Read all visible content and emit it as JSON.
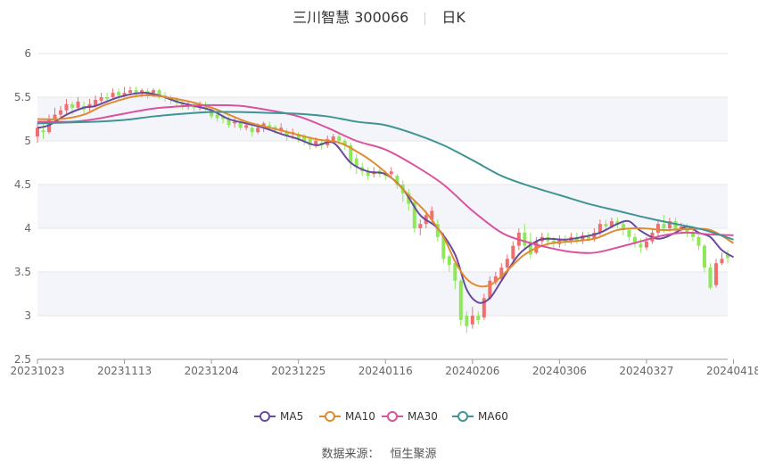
{
  "header": {
    "stock_name": "三川智慧 300066",
    "period": "日K"
  },
  "source": {
    "label": "数据来源：",
    "value": "恒生聚源"
  },
  "colors": {
    "up": "#ef6f6f",
    "down": "#8fe85a",
    "MA5": "#6a4a9e",
    "MA10": "#e08b32",
    "MA30": "#d9529e",
    "MA60": "#3f9494",
    "band": "#f4f5fa",
    "grid": "#e6e6e6",
    "axis": "#999999"
  },
  "chart_data": {
    "type": "candlestick",
    "ylim": [
      2.5,
      6
    ],
    "yticks": [
      "2.5",
      "3",
      "3.5",
      "4",
      "4.5",
      "5",
      "5.5",
      "6"
    ],
    "xticks": [
      "20231023",
      "20231113",
      "20231204",
      "20231225",
      "20240116",
      "20240206",
      "20240306",
      "20240327",
      "20240418"
    ],
    "xtick_positions": [
      0,
      15,
      30,
      45,
      60,
      75,
      90,
      105,
      120
    ],
    "legend_position": "bottom",
    "series": [
      {
        "name": "MA5",
        "points": [
          [
            0,
            5.15
          ],
          [
            2,
            5.18
          ],
          [
            5,
            5.3
          ],
          [
            8,
            5.38
          ],
          [
            10,
            5.4
          ],
          [
            14,
            5.5
          ],
          [
            18,
            5.55
          ],
          [
            21,
            5.52
          ],
          [
            24,
            5.45
          ],
          [
            27,
            5.4
          ],
          [
            30,
            5.35
          ],
          [
            33,
            5.25
          ],
          [
            36,
            5.2
          ],
          [
            39,
            5.15
          ],
          [
            42,
            5.08
          ],
          [
            45,
            5.02
          ],
          [
            48,
            4.95
          ],
          [
            51,
            4.98
          ],
          [
            54,
            4.75
          ],
          [
            57,
            4.65
          ],
          [
            60,
            4.62
          ],
          [
            63,
            4.45
          ],
          [
            66,
            4.15
          ],
          [
            69,
            4.0
          ],
          [
            72,
            3.7
          ],
          [
            74,
            3.3
          ],
          [
            76,
            3.15
          ],
          [
            78,
            3.2
          ],
          [
            80,
            3.4
          ],
          [
            83,
            3.7
          ],
          [
            86,
            3.85
          ],
          [
            88,
            3.88
          ],
          [
            91,
            3.87
          ],
          [
            94,
            3.9
          ],
          [
            97,
            3.95
          ],
          [
            100,
            4.05
          ],
          [
            102,
            4.08
          ],
          [
            104,
            3.97
          ],
          [
            107,
            3.88
          ],
          [
            110,
            3.95
          ],
          [
            112,
            4.02
          ],
          [
            114,
            3.95
          ],
          [
            116,
            3.9
          ],
          [
            118,
            3.75
          ],
          [
            120,
            3.67
          ]
        ]
      },
      {
        "name": "MA10",
        "points": [
          [
            0,
            5.25
          ],
          [
            4,
            5.25
          ],
          [
            8,
            5.3
          ],
          [
            12,
            5.42
          ],
          [
            18,
            5.52
          ],
          [
            24,
            5.48
          ],
          [
            30,
            5.38
          ],
          [
            36,
            5.22
          ],
          [
            42,
            5.12
          ],
          [
            48,
            5.02
          ],
          [
            52,
            4.98
          ],
          [
            55,
            4.88
          ],
          [
            58,
            4.75
          ],
          [
            61,
            4.58
          ],
          [
            64,
            4.38
          ],
          [
            67,
            4.18
          ],
          [
            70,
            3.9
          ],
          [
            72,
            3.62
          ],
          [
            74,
            3.42
          ],
          [
            76,
            3.34
          ],
          [
            78,
            3.35
          ],
          [
            80,
            3.45
          ],
          [
            84,
            3.7
          ],
          [
            88,
            3.82
          ],
          [
            92,
            3.85
          ],
          [
            96,
            3.88
          ],
          [
            100,
            3.98
          ],
          [
            104,
            4.0
          ],
          [
            108,
            3.98
          ],
          [
            112,
            3.99
          ],
          [
            116,
            3.98
          ],
          [
            120,
            3.83
          ]
        ]
      },
      {
        "name": "MA30",
        "points": [
          [
            0,
            5.22
          ],
          [
            6,
            5.22
          ],
          [
            10,
            5.25
          ],
          [
            14,
            5.3
          ],
          [
            20,
            5.37
          ],
          [
            26,
            5.4
          ],
          [
            30,
            5.41
          ],
          [
            35,
            5.4
          ],
          [
            40,
            5.35
          ],
          [
            45,
            5.28
          ],
          [
            50,
            5.15
          ],
          [
            55,
            5.0
          ],
          [
            60,
            4.9
          ],
          [
            65,
            4.72
          ],
          [
            70,
            4.5
          ],
          [
            75,
            4.2
          ],
          [
            80,
            3.95
          ],
          [
            84,
            3.85
          ],
          [
            88,
            3.78
          ],
          [
            92,
            3.73
          ],
          [
            96,
            3.72
          ],
          [
            100,
            3.78
          ],
          [
            104,
            3.85
          ],
          [
            108,
            3.92
          ],
          [
            112,
            3.95
          ],
          [
            116,
            3.93
          ],
          [
            120,
            3.92
          ]
        ]
      },
      {
        "name": "MA60",
        "points": [
          [
            0,
            5.2
          ],
          [
            10,
            5.22
          ],
          [
            15,
            5.24
          ],
          [
            20,
            5.28
          ],
          [
            25,
            5.31
          ],
          [
            30,
            5.33
          ],
          [
            35,
            5.33
          ],
          [
            40,
            5.32
          ],
          [
            45,
            5.31
          ],
          [
            50,
            5.28
          ],
          [
            55,
            5.22
          ],
          [
            60,
            5.18
          ],
          [
            65,
            5.08
          ],
          [
            70,
            4.95
          ],
          [
            75,
            4.78
          ],
          [
            80,
            4.6
          ],
          [
            85,
            4.48
          ],
          [
            90,
            4.38
          ],
          [
            95,
            4.28
          ],
          [
            100,
            4.2
          ],
          [
            105,
            4.12
          ],
          [
            110,
            4.05
          ],
          [
            115,
            3.98
          ],
          [
            120,
            3.87
          ]
        ]
      }
    ],
    "candles": [
      [
        5.05,
        5.15,
        5.2,
        4.98
      ],
      [
        5.12,
        5.1,
        5.2,
        5.02
      ],
      [
        5.1,
        5.25,
        5.3,
        5.08
      ],
      [
        5.25,
        5.3,
        5.38,
        5.2
      ],
      [
        5.3,
        5.35,
        5.4,
        5.25
      ],
      [
        5.35,
        5.42,
        5.48,
        5.3
      ],
      [
        5.42,
        5.38,
        5.45,
        5.3
      ],
      [
        5.38,
        5.45,
        5.5,
        5.35
      ],
      [
        5.4,
        5.36,
        5.45,
        5.3
      ],
      [
        5.38,
        5.42,
        5.48,
        5.32
      ],
      [
        5.4,
        5.47,
        5.52,
        5.38
      ],
      [
        5.46,
        5.5,
        5.55,
        5.42
      ],
      [
        5.5,
        5.48,
        5.55,
        5.42
      ],
      [
        5.5,
        5.55,
        5.6,
        5.48
      ],
      [
        5.56,
        5.52,
        5.6,
        5.46
      ],
      [
        5.52,
        5.55,
        5.62,
        5.5
      ],
      [
        5.55,
        5.58,
        5.62,
        5.52
      ],
      [
        5.58,
        5.54,
        5.62,
        5.5
      ],
      [
        5.54,
        5.58,
        5.6,
        5.5
      ],
      [
        5.57,
        5.53,
        5.6,
        5.48
      ],
      [
        5.55,
        5.58,
        5.6,
        5.5
      ],
      [
        5.58,
        5.52,
        5.6,
        5.48
      ],
      [
        5.52,
        5.5,
        5.56,
        5.45
      ],
      [
        5.5,
        5.47,
        5.52,
        5.42
      ],
      [
        5.47,
        5.44,
        5.5,
        5.4
      ],
      [
        5.43,
        5.4,
        5.46,
        5.36
      ],
      [
        5.4,
        5.42,
        5.46,
        5.36
      ],
      [
        5.42,
        5.38,
        5.45,
        5.34
      ],
      [
        5.38,
        5.42,
        5.45,
        5.35
      ],
      [
        5.42,
        5.38,
        5.45,
        5.34
      ],
      [
        5.35,
        5.28,
        5.38,
        5.25
      ],
      [
        5.3,
        5.26,
        5.32,
        5.22
      ],
      [
        5.28,
        5.25,
        5.3,
        5.2
      ],
      [
        5.25,
        5.18,
        5.28,
        5.15
      ],
      [
        5.2,
        5.22,
        5.26,
        5.15
      ],
      [
        5.22,
        5.15,
        5.25,
        5.12
      ],
      [
        5.15,
        5.18,
        5.22,
        5.12
      ],
      [
        5.15,
        5.1,
        5.18,
        5.05
      ],
      [
        5.1,
        5.15,
        5.2,
        5.08
      ],
      [
        5.15,
        5.2,
        5.22,
        5.1
      ],
      [
        5.18,
        5.16,
        5.22,
        5.12
      ],
      [
        5.16,
        5.12,
        5.18,
        5.08
      ],
      [
        5.12,
        5.15,
        5.2,
        5.08
      ],
      [
        5.1,
        5.05,
        5.14,
        5.0
      ],
      [
        5.08,
        5.1,
        5.14,
        5.02
      ],
      [
        5.08,
        5.02,
        5.1,
        4.98
      ],
      [
        5.05,
        5.0,
        5.08,
        4.95
      ],
      [
        5.02,
        4.95,
        5.05,
        4.9
      ],
      [
        4.95,
        5.0,
        5.04,
        4.92
      ],
      [
        4.98,
        4.95,
        5.02,
        4.9
      ],
      [
        4.95,
        5.02,
        5.06,
        4.92
      ],
      [
        5.0,
        5.05,
        5.08,
        4.98
      ],
      [
        5.05,
        5.0,
        5.08,
        4.96
      ],
      [
        5.0,
        4.95,
        5.02,
        4.9
      ],
      [
        4.95,
        4.75,
        4.98,
        4.68
      ],
      [
        4.8,
        4.7,
        4.85,
        4.62
      ],
      [
        4.7,
        4.65,
        4.75,
        4.6
      ],
      [
        4.65,
        4.6,
        4.7,
        4.55
      ],
      [
        4.62,
        4.65,
        4.7,
        4.58
      ],
      [
        4.66,
        4.62,
        4.7,
        4.58
      ],
      [
        4.62,
        4.6,
        4.66,
        4.55
      ],
      [
        4.62,
        4.65,
        4.7,
        4.58
      ],
      [
        4.6,
        4.5,
        4.62,
        4.45
      ],
      [
        4.5,
        4.4,
        4.55,
        4.3
      ],
      [
        4.4,
        4.28,
        4.45,
        4.2
      ],
      [
        4.3,
        4.0,
        4.32,
        3.95
      ],
      [
        4.0,
        4.05,
        4.1,
        3.92
      ],
      [
        4.05,
        4.15,
        4.2,
        4.0
      ],
      [
        4.1,
        4.2,
        4.25,
        4.05
      ],
      [
        4.05,
        3.9,
        4.1,
        3.85
      ],
      [
        3.9,
        3.65,
        3.95,
        3.6
      ],
      [
        3.68,
        3.58,
        3.7,
        3.5
      ],
      [
        3.6,
        3.4,
        3.62,
        3.3
      ],
      [
        3.4,
        2.95,
        3.42,
        2.88
      ],
      [
        3.0,
        2.88,
        3.05,
        2.8
      ],
      [
        2.9,
        3.0,
        3.1,
        2.85
      ],
      [
        3.0,
        2.95,
        3.05,
        2.9
      ],
      [
        2.98,
        3.2,
        3.25,
        2.95
      ],
      [
        3.2,
        3.4,
        3.45,
        3.18
      ],
      [
        3.38,
        3.45,
        3.5,
        3.35
      ],
      [
        3.42,
        3.55,
        3.6,
        3.4
      ],
      [
        3.55,
        3.65,
        3.7,
        3.5
      ],
      [
        3.65,
        3.8,
        3.85,
        3.6
      ],
      [
        3.8,
        3.95,
        4.0,
        3.75
      ],
      [
        3.95,
        3.8,
        4.05,
        3.75
      ],
      [
        3.85,
        3.7,
        3.95,
        3.65
      ],
      [
        3.72,
        3.85,
        3.9,
        3.7
      ],
      [
        3.85,
        3.9,
        3.95,
        3.8
      ],
      [
        3.9,
        3.85,
        3.95,
        3.8
      ],
      [
        3.86,
        3.82,
        3.9,
        3.76
      ],
      [
        3.82,
        3.88,
        3.92,
        3.78
      ],
      [
        3.88,
        3.85,
        3.92,
        3.8
      ],
      [
        3.85,
        3.9,
        3.95,
        3.82
      ],
      [
        3.9,
        3.86,
        3.95,
        3.82
      ],
      [
        3.86,
        3.92,
        3.96,
        3.82
      ],
      [
        3.92,
        3.88,
        3.96,
        3.84
      ],
      [
        3.88,
        3.95,
        4.0,
        3.85
      ],
      [
        3.95,
        4.05,
        4.1,
        3.92
      ],
      [
        4.05,
        4.02,
        4.1,
        3.98
      ],
      [
        4.02,
        4.08,
        4.12,
        4.0
      ],
      [
        4.08,
        4.05,
        4.12,
        4.0
      ],
      [
        4.05,
        3.98,
        4.08,
        3.92
      ],
      [
        3.98,
        3.9,
        4.0,
        3.85
      ],
      [
        3.9,
        3.82,
        3.94,
        3.78
      ],
      [
        3.82,
        3.78,
        3.88,
        3.72
      ],
      [
        3.78,
        3.85,
        3.9,
        3.75
      ],
      [
        3.85,
        3.95,
        4.0,
        3.82
      ],
      [
        3.95,
        4.05,
        4.1,
        3.9
      ],
      [
        4.05,
        4.0,
        4.15,
        3.95
      ],
      [
        4.0,
        4.08,
        4.12,
        3.96
      ],
      [
        4.08,
        3.98,
        4.12,
        3.94
      ],
      [
        3.98,
        4.02,
        4.06,
        3.95
      ],
      [
        4.02,
        3.95,
        4.05,
        3.9
      ],
      [
        3.95,
        3.9,
        3.98,
        3.85
      ],
      [
        3.9,
        3.8,
        3.92,
        3.75
      ],
      [
        3.8,
        3.55,
        3.82,
        3.5
      ],
      [
        3.55,
        3.32,
        3.6,
        3.3
      ],
      [
        3.35,
        3.6,
        3.65,
        3.32
      ],
      [
        3.6,
        3.65,
        3.72,
        3.58
      ],
      [
        3.7,
        3.66,
        3.75,
        3.6
      ]
    ]
  }
}
